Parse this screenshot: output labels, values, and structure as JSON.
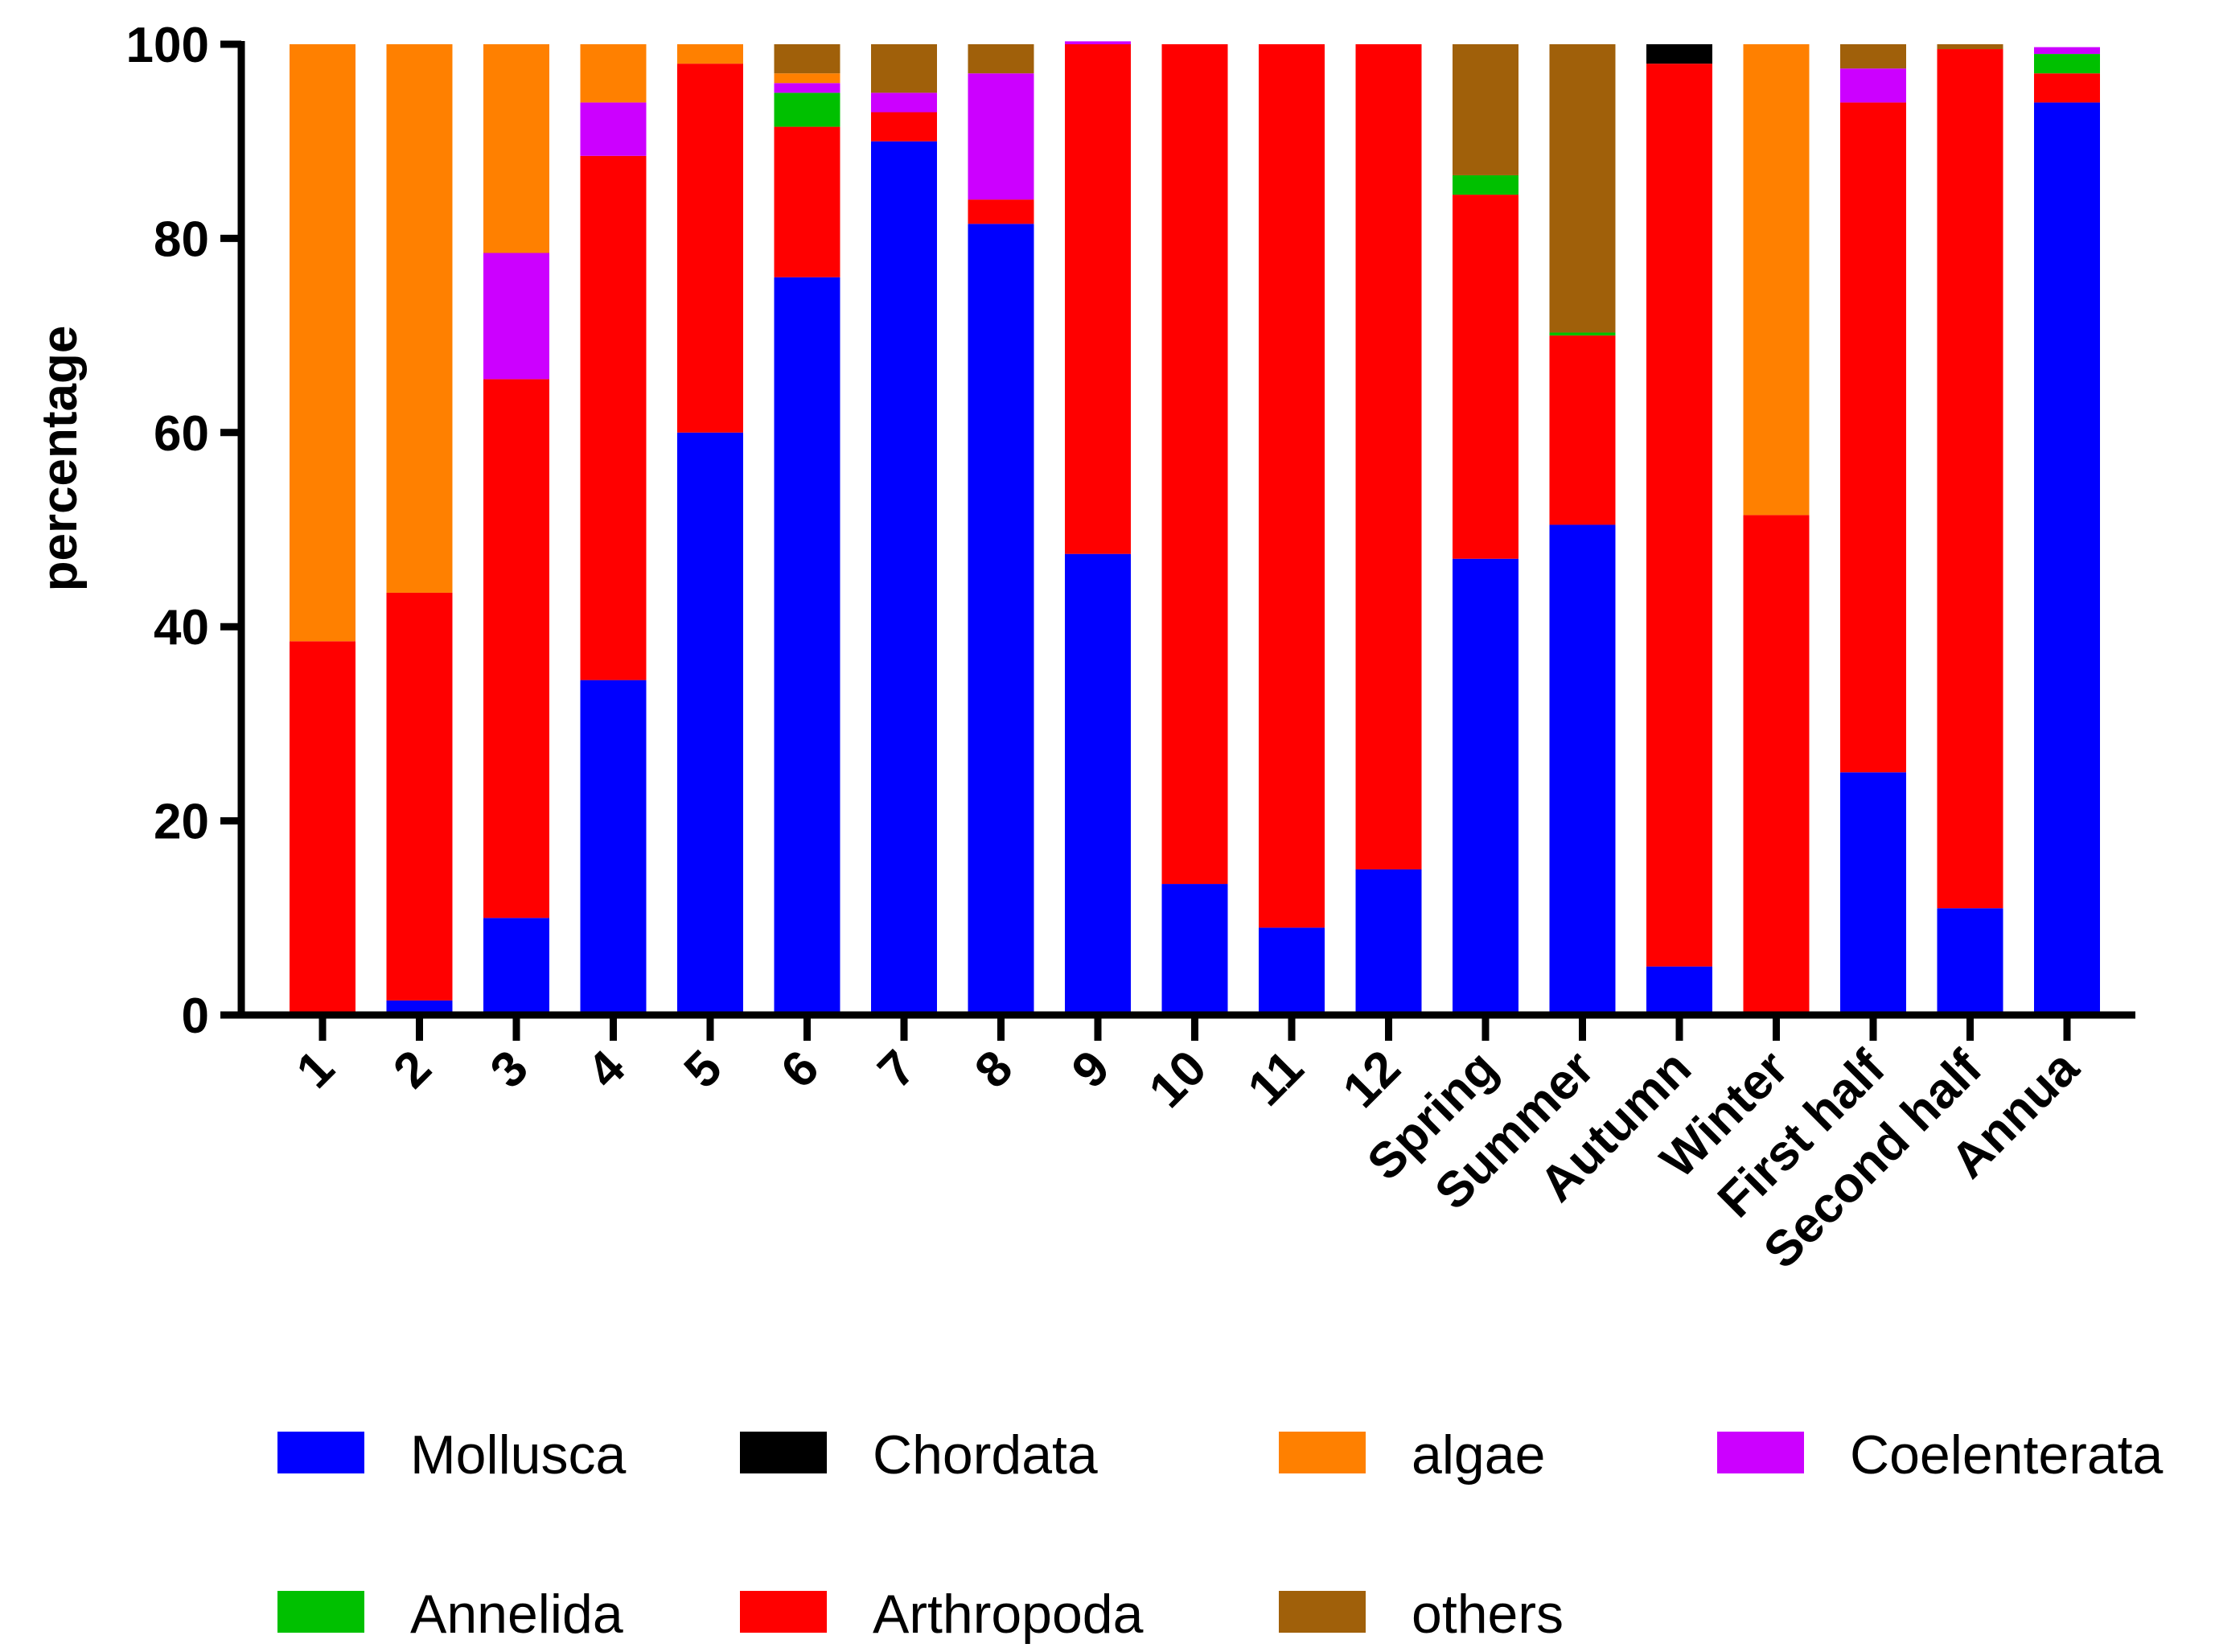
{
  "chart_data": {
    "type": "bar",
    "stacked": true,
    "title": "",
    "xlabel": "",
    "ylabel": "percentage",
    "ylim": [
      0,
      100
    ],
    "yticks": [
      "0",
      "20",
      "40",
      "60",
      "80",
      "100"
    ],
    "categories": [
      "1",
      "2",
      "3",
      "4",
      "5",
      "6",
      "7",
      "8",
      "9",
      "10",
      "11",
      "12",
      "Spring",
      "Summer",
      "Autumn",
      "Winter",
      "First half",
      "Second half",
      "Annua"
    ],
    "series": [
      {
        "name": "Mollusca",
        "color": "#0000ff",
        "values": [
          0,
          1.5,
          10,
          34.5,
          60,
          76,
          90,
          81.5,
          47.5,
          13.5,
          9,
          15,
          47,
          50.5,
          5,
          0,
          25,
          11,
          94
        ]
      },
      {
        "name": "Arthropoda",
        "color": "#ff0000",
        "values": [
          38.5,
          42,
          55.5,
          54,
          38,
          15.5,
          3,
          2.5,
          52.5,
          86.5,
          91,
          85,
          37.5,
          19.5,
          93,
          51.5,
          69,
          88.5,
          3
        ]
      },
      {
        "name": "Annelida",
        "color": "#00c000",
        "values": [
          0,
          0,
          0,
          0,
          0,
          3.5,
          0,
          0,
          0,
          0,
          0,
          0,
          2,
          0.3,
          0,
          0,
          0,
          0,
          2
        ]
      },
      {
        "name": "Coelenterata",
        "color": "#cc00ff",
        "values": [
          0,
          0,
          13,
          5.5,
          0,
          1,
          2,
          13,
          0.3,
          0,
          0,
          0,
          0,
          0,
          0,
          0,
          3.5,
          0,
          0.7
        ]
      },
      {
        "name": "algae",
        "color": "#ff8000",
        "values": [
          61.5,
          56.5,
          21.5,
          6,
          2,
          1,
          0,
          0,
          0,
          0,
          0,
          0,
          0,
          0,
          0,
          48.5,
          0,
          0,
          0
        ]
      },
      {
        "name": "others",
        "color": "#a0600a",
        "values": [
          0,
          0,
          0,
          0,
          0,
          3,
          5,
          3,
          0,
          0,
          0,
          0,
          13.5,
          29.7,
          0,
          0,
          2.5,
          0.5,
          0
        ]
      },
      {
        "name": "Chordata",
        "color": "#000000",
        "values": [
          0,
          0,
          0,
          0,
          0,
          0,
          0,
          0,
          0,
          0,
          0,
          0,
          0,
          0,
          2,
          0,
          0,
          0,
          0
        ]
      }
    ],
    "legend": {
      "placement": "bottom",
      "entries": [
        {
          "label": "Mollusca",
          "color": "#0000ff"
        },
        {
          "label": "Chordata",
          "color": "#000000"
        },
        {
          "label": "algae",
          "color": "#ff8000"
        },
        {
          "label": "Coelenterata",
          "color": "#cc00ff"
        },
        {
          "label": "Annelida",
          "color": "#00c000"
        },
        {
          "label": "Arthropoda",
          "color": "#ff0000"
        },
        {
          "label": "others",
          "color": "#a0600a"
        }
      ]
    },
    "grid": false
  }
}
